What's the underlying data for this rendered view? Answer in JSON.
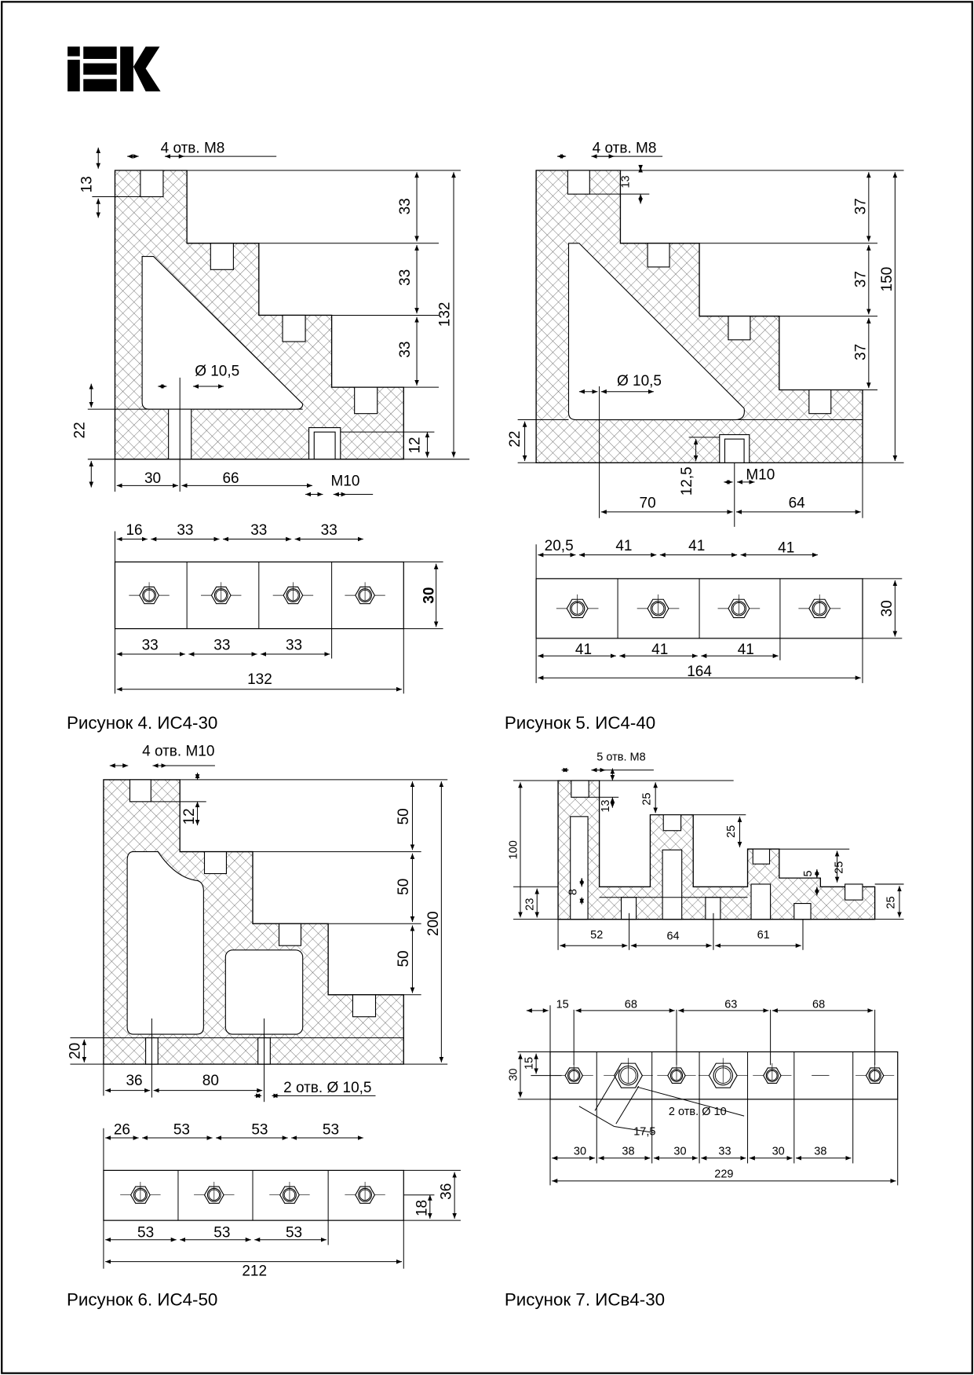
{
  "logo": "IEK",
  "colors": {
    "ink": "#000000",
    "hatch": "#555555",
    "background": "#ffffff"
  },
  "figures": [
    {
      "caption": "Рисунок 4. ИС4-30",
      "labels": [
        "4 отв.  M8",
        "13",
        "33",
        "33",
        "33",
        "132",
        "Ø 10,5",
        "22",
        "12",
        "30",
        "66",
        "M10",
        "16",
        "33",
        "33",
        "33",
        "30",
        "33",
        "33",
        "33",
        "132"
      ]
    },
    {
      "caption": "Рисунок 5. ИС4-40",
      "labels": [
        "4 отв. M8",
        "13",
        "37",
        "37",
        "37",
        "150",
        "Ø 10,5",
        "22",
        "12,5",
        "M10",
        "70",
        "64",
        "20,5",
        "41",
        "41",
        "41",
        "30",
        "41",
        "41",
        "41",
        "164"
      ]
    },
    {
      "caption": "Рисунок 6. ИС4-50",
      "labels": [
        "4 отв.  M10",
        "12",
        "50",
        "50",
        "50",
        "200",
        "20",
        "36",
        "80",
        "2 отв. Ø 10,5",
        "26",
        "53",
        "53",
        "53",
        "36",
        "18",
        "53",
        "53",
        "53",
        "212"
      ]
    },
    {
      "caption": "Рисунок 7. ИСв4-30",
      "labels": [
        "5 отв.  M8",
        "13",
        "25",
        "25",
        "25",
        "5",
        "100",
        "23",
        "8",
        "25",
        "52",
        "64",
        "61",
        "15",
        "68",
        "63",
        "68",
        "30",
        "15",
        "2 отв. Ø 10",
        "17,5",
        "30",
        "38",
        "30",
        "33",
        "30",
        "38",
        "229"
      ]
    }
  ]
}
